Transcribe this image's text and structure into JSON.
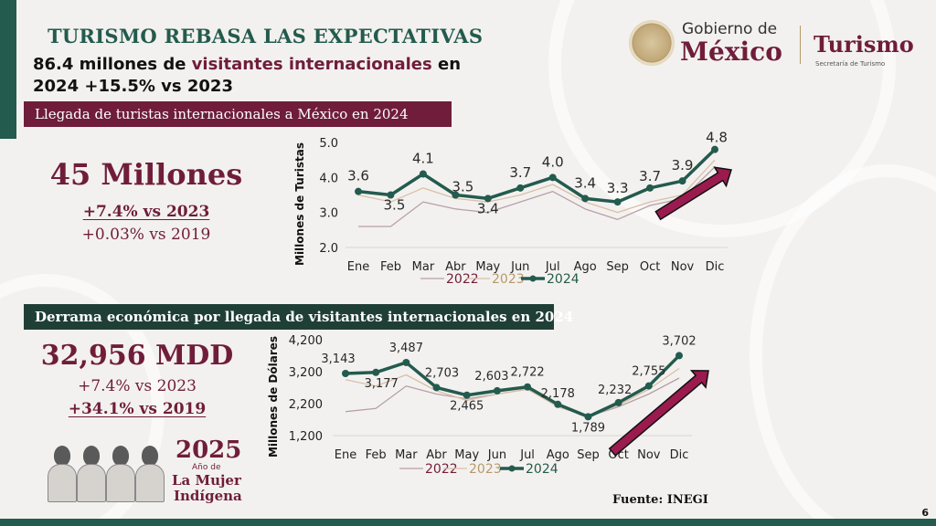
{
  "header": {
    "title": "TURISMO REBASA LAS EXPECTATIVAS",
    "subtitle_part1": "86.4 millones de ",
    "subtitle_highlight": "visitantes internacionales",
    "subtitle_part2": " en 2024 +15.5% vs 2023"
  },
  "logo": {
    "gov_line1": "Gobierno de",
    "gov_line2": "México",
    "agency": "Turismo",
    "agency_sub": "Secretaría de Turismo"
  },
  "section_tourists": {
    "banner": "Llegada de turistas internacionales a México en 2024",
    "big_value": "45 Millones",
    "vs_2023": "+7.4% vs 2023",
    "vs_2019": "+0.03% vs 2019"
  },
  "section_spending": {
    "banner": "Derrama económica por llegada de visitantes internacionales en 2024",
    "big_value": "32,956 MDD",
    "vs_2023": "+7.4% vs 2023",
    "vs_2019": "+34.1% vs 2019"
  },
  "badge": {
    "year": "2025",
    "line1": "Año de",
    "line2": "La Mujer",
    "line3": "Indígena"
  },
  "footer": {
    "source": "Fuente: INEGI",
    "page_number": "6"
  },
  "colors": {
    "green": "#235b4e",
    "maroon": "#6f1d3b",
    "series_2022": "#b7a0a8",
    "series_2023": "#d9bfa8",
    "series_2024": "#235b4e",
    "arrow": "#9b1b4f"
  },
  "chart_data": [
    {
      "type": "line",
      "title": "Llegada de turistas internacionales a México en 2024",
      "xlabel": "",
      "ylabel": "Millones de Turistas",
      "ylim": [
        2.0,
        5.0
      ],
      "yticks": [
        "2.0",
        "3.0",
        "4.0",
        "5.0"
      ],
      "ytick_values": [
        2.0,
        3.0,
        4.0,
        5.0
      ],
      "categories": [
        "Ene",
        "Feb",
        "Mar",
        "Abr",
        "May",
        "Jun",
        "Jul",
        "Ago",
        "Sep",
        "Oct",
        "Nov",
        "Dic"
      ],
      "legend_position": "bottom",
      "series": [
        {
          "name": "2022",
          "values": [
            2.6,
            2.6,
            3.3,
            3.1,
            3.0,
            3.3,
            3.6,
            3.1,
            2.8,
            3.2,
            3.4,
            4.3
          ]
        },
        {
          "name": "2023",
          "values": [
            3.5,
            3.3,
            3.7,
            3.4,
            3.3,
            3.5,
            3.8,
            3.3,
            3.0,
            3.3,
            3.5,
            4.5
          ]
        },
        {
          "name": "2024",
          "values": [
            3.6,
            3.5,
            4.1,
            3.5,
            3.4,
            3.7,
            4.0,
            3.4,
            3.3,
            3.7,
            3.9,
            4.8
          ],
          "labels": [
            "3.6",
            "3.5",
            "4.1",
            "3.5",
            "3.4",
            "3.7",
            "4.0",
            "3.4",
            "3.3",
            "3.7",
            "3.9",
            "4.8"
          ]
        }
      ]
    },
    {
      "type": "line",
      "title": "Derrama económica por llegada de visitantes internacionales en 2024",
      "xlabel": "",
      "ylabel": "Millones de Dólares",
      "ylim": [
        1200,
        4200
      ],
      "yticks": [
        "1,200",
        "2,200",
        "3,200",
        "4,200"
      ],
      "ytick_values": [
        1200,
        2200,
        3200,
        4200
      ],
      "categories": [
        "Ene",
        "Feb",
        "Mar",
        "Abr",
        "May",
        "Jun",
        "Jul",
        "Ago",
        "Sep",
        "Oct",
        "Nov",
        "Dic"
      ],
      "legend_position": "bottom",
      "series": [
        {
          "name": "2022",
          "values": [
            1950,
            2050,
            2750,
            2500,
            2350,
            2500,
            2650,
            2150,
            1800,
            2100,
            2500,
            3000
          ]
        },
        {
          "name": "2023",
          "values": [
            2950,
            2750,
            3100,
            2600,
            2300,
            2500,
            2650,
            2100,
            1800,
            2150,
            2650,
            3300
          ]
        },
        {
          "name": "2024",
          "values": [
            3143,
            3177,
            3487,
            2703,
            2465,
            2603,
            2722,
            2178,
            1789,
            2232,
            2755,
            3702
          ],
          "labels": [
            "3,143",
            "3,177",
            "3,487",
            "2,703",
            "2,465",
            "2,603",
            "2,722",
            "2,178",
            "1,789",
            "2,232",
            "2,755",
            "3,702"
          ]
        }
      ]
    }
  ]
}
